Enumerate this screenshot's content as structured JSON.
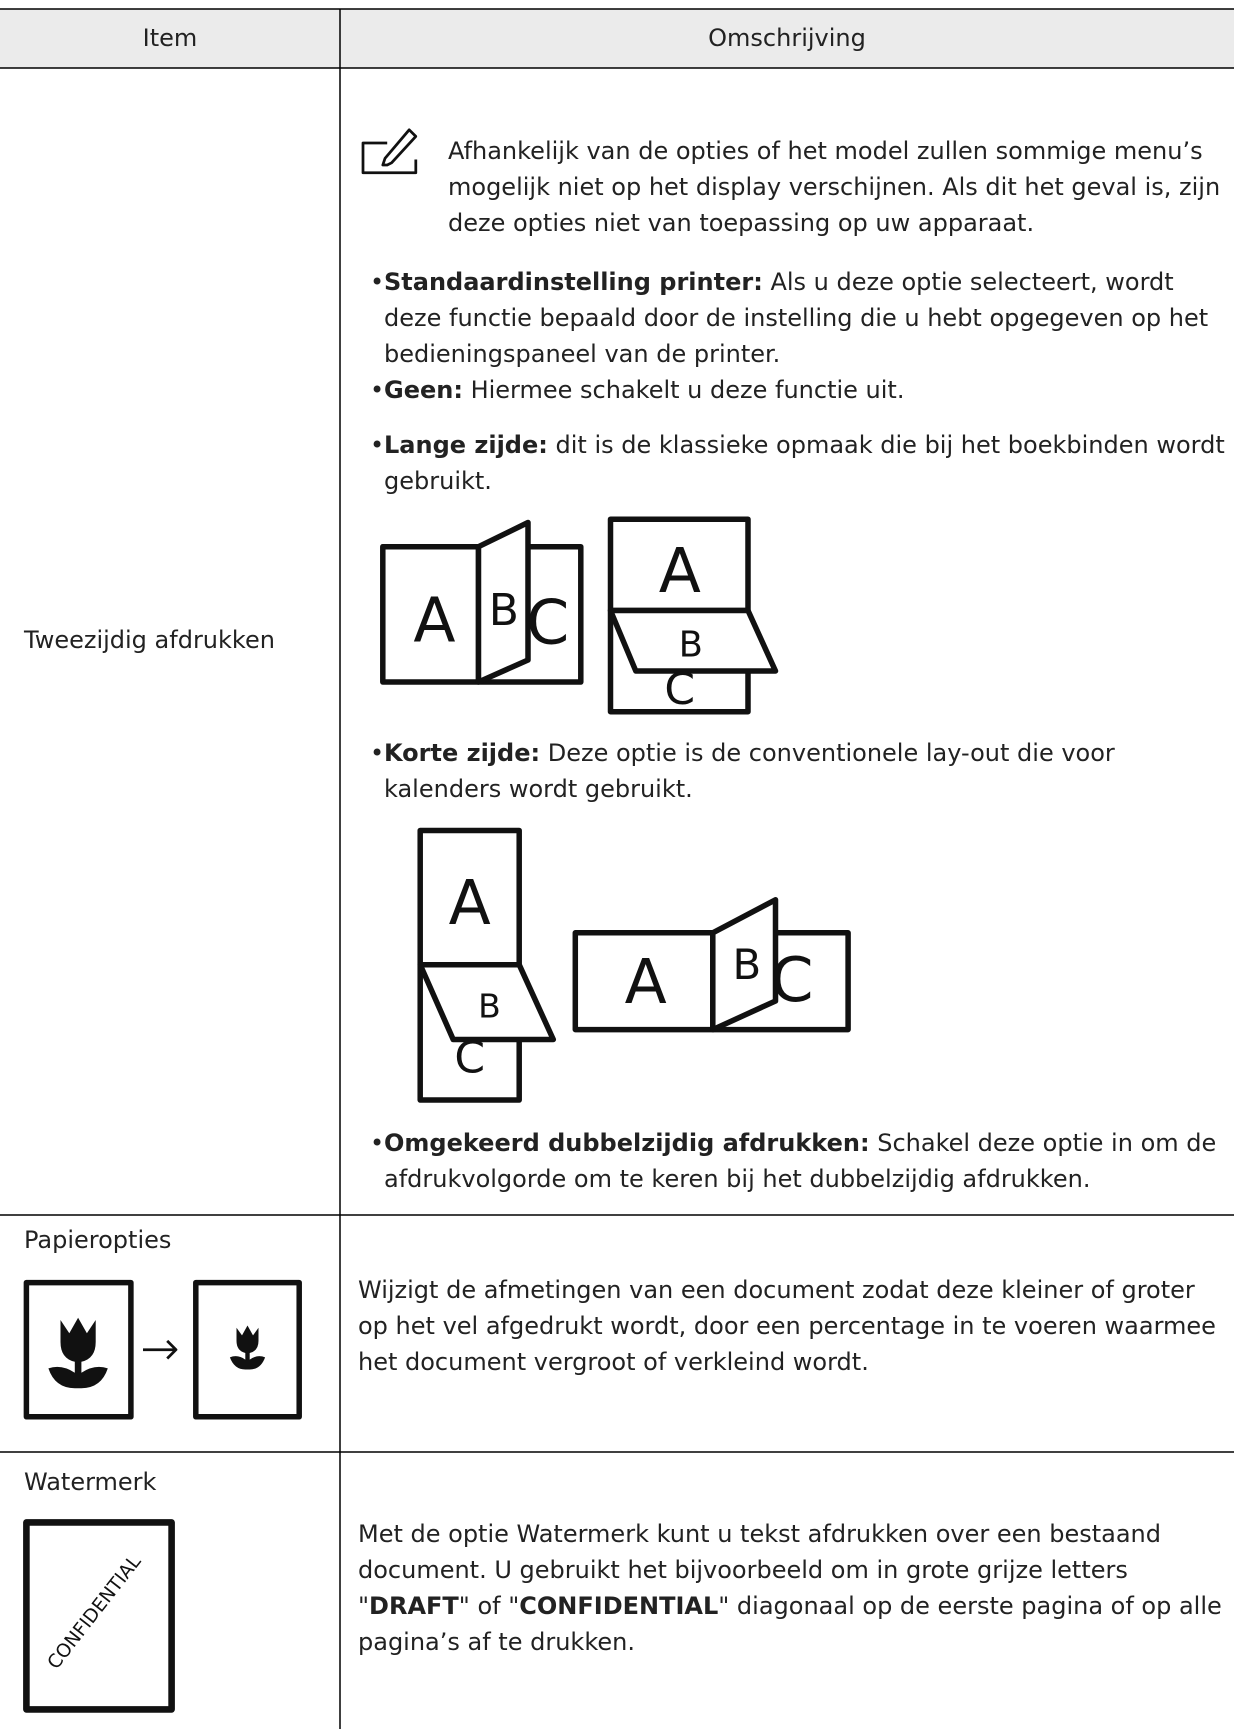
{
  "table": {
    "headers": [
      "Item",
      "Omschrijving"
    ],
    "rows": [
      {
        "item": "Tweezijdig afdrukken",
        "note": "Afhankelijk van de opties of het model zullen sommige menu’s mogelijk niet op het display verschijnen. Als dit het geval is, zijn deze opties niet van toepassing op uw apparaat.",
        "bullets": [
          {
            "term": "Standaardinstelling printer:",
            "text": "Als u deze optie selecteert, wordt deze functie bepaald door de instelling die u hebt opgegeven op het bedieningspaneel van de printer."
          },
          {
            "term": "Geen:",
            "text": "Hiermee schakelt u deze functie uit."
          },
          {
            "term": "Lange zijde:",
            "text": "dit is de klassieke opmaak die bij het boekbinden wordt gebruikt."
          },
          {
            "term": "Korte zijde:",
            "text": "Deze optie is de conventionele lay-out die voor kalenders wordt gebruikt."
          },
          {
            "term": "Omgekeerd dubbelzijdig afdrukken:",
            "text": "Schakel deze optie in om de afdrukvolgorde om te keren bij het dubbelzijdig afdrukken."
          }
        ],
        "illustration_letters": [
          "A",
          "B",
          "C"
        ]
      },
      {
        "item": "Papieropties",
        "description": "Wijzigt de afmetingen van een document zodat deze kleiner of groter op het vel afgedrukt wordt, door een percentage in te voeren waarmee het document vergroot of verkleind wordt."
      },
      {
        "item": "Watermerk",
        "icon_text": "CONFIDENTIAL",
        "segments": [
          {
            "text": "Met de optie Watermerk kunt u tekst afdrukken over een bestaand document. U gebruikt het bijvoorbeeld om in grote grijze letters \"",
            "bold": false
          },
          {
            "text": "DRAFT",
            "bold": true
          },
          {
            "text": "\" of \"",
            "bold": false
          },
          {
            "text": "CONFIDENTIAL",
            "bold": true
          },
          {
            "text": "\" diagonaal op de eerste pagina of op alle pagina’s af te drukken.",
            "bold": false
          }
        ]
      }
    ]
  }
}
